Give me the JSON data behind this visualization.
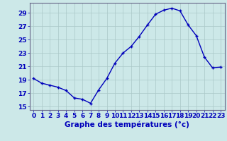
{
  "hours": [
    0,
    1,
    2,
    3,
    4,
    5,
    6,
    7,
    8,
    9,
    10,
    11,
    12,
    13,
    14,
    15,
    16,
    17,
    18,
    19,
    20,
    21,
    22,
    23
  ],
  "temps": [
    19.2,
    18.5,
    18.2,
    17.9,
    17.4,
    16.3,
    16.1,
    15.5,
    17.5,
    19.2,
    21.5,
    23.0,
    24.0,
    25.5,
    27.2,
    28.8,
    29.4,
    29.7,
    29.3,
    27.2,
    25.6,
    22.4,
    20.8,
    20.9
  ],
  "line_color": "#0000bb",
  "marker": "+",
  "bg_color": "#cce8e8",
  "grid_color": "#aac8c8",
  "xlabel": "Graphe des températures (°c)",
  "ylim": [
    14.5,
    30.5
  ],
  "yticks": [
    15,
    17,
    19,
    21,
    23,
    25,
    27,
    29
  ],
  "xticks": [
    0,
    1,
    2,
    3,
    4,
    5,
    6,
    7,
    8,
    9,
    10,
    11,
    12,
    13,
    14,
    15,
    16,
    17,
    18,
    19,
    20,
    21,
    22,
    23
  ],
  "tick_color": "#0000bb",
  "axis_color": "#666688",
  "font_size": 6.5,
  "label_font_size": 7.5
}
